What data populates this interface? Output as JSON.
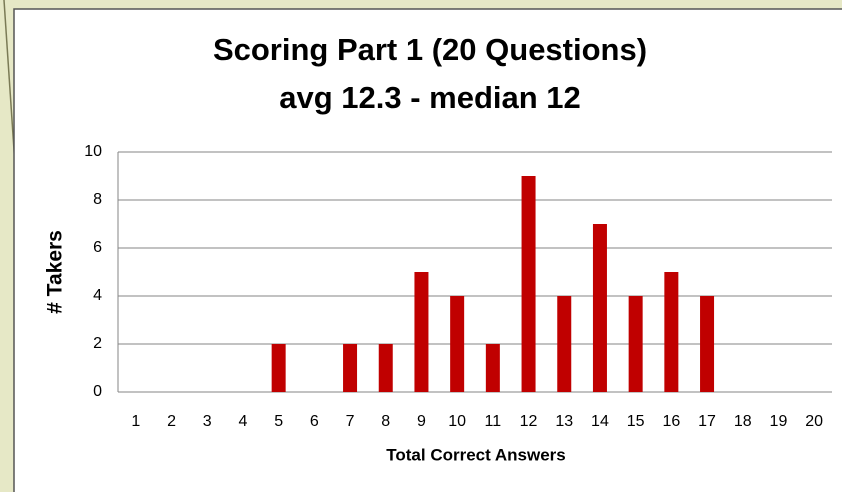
{
  "chart_data": {
    "type": "bar",
    "title": "Scoring Part 1 (20 Questions)",
    "subtitle": "avg 12.3 - median 12",
    "x_label": "Total Correct Answers",
    "y_label": "# Takers",
    "categories": [
      1,
      2,
      3,
      4,
      5,
      6,
      7,
      8,
      9,
      10,
      11,
      12,
      13,
      14,
      15,
      16,
      17,
      18,
      19,
      20
    ],
    "values": [
      0,
      0,
      0,
      0,
      2,
      0,
      2,
      2,
      5,
      4,
      2,
      9,
      4,
      7,
      4,
      5,
      4,
      0,
      0,
      0
    ],
    "color": "#c00000",
    "ylim": [
      0,
      10
    ],
    "yticks": [
      0,
      2,
      4,
      6,
      8,
      10
    ],
    "grid": true
  }
}
